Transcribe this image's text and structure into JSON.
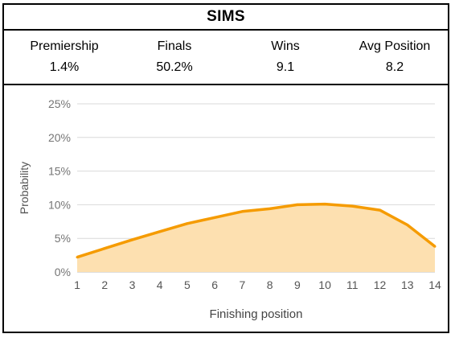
{
  "header": {
    "title": "SIMS",
    "stats": [
      {
        "label": "Premiership",
        "value": "1.4%"
      },
      {
        "label": "Finals",
        "value": "50.2%"
      },
      {
        "label": "Wins",
        "value": "9.1"
      },
      {
        "label": "Avg Position",
        "value": "8.2"
      }
    ]
  },
  "colors": {
    "line": "#f59b00",
    "fill": "#fde0b0",
    "grid": "#d9d9d9",
    "tick_text": "#757575"
  },
  "chart_data": {
    "type": "area",
    "xlabel": "Finishing position",
    "ylabel": "Probability",
    "x": [
      1,
      2,
      3,
      4,
      5,
      6,
      7,
      8,
      9,
      10,
      11,
      12,
      13,
      14
    ],
    "y_ticks": [
      "0%",
      "5%",
      "10%",
      "15%",
      "20%",
      "25%"
    ],
    "ylim": [
      0,
      25
    ],
    "grid": true,
    "series": [
      {
        "values": [
          2.2,
          3.5,
          4.8,
          6.0,
          7.2,
          8.1,
          9.0,
          9.4,
          10.0,
          10.1,
          9.8,
          9.2,
          7.0,
          3.8
        ]
      }
    ]
  }
}
